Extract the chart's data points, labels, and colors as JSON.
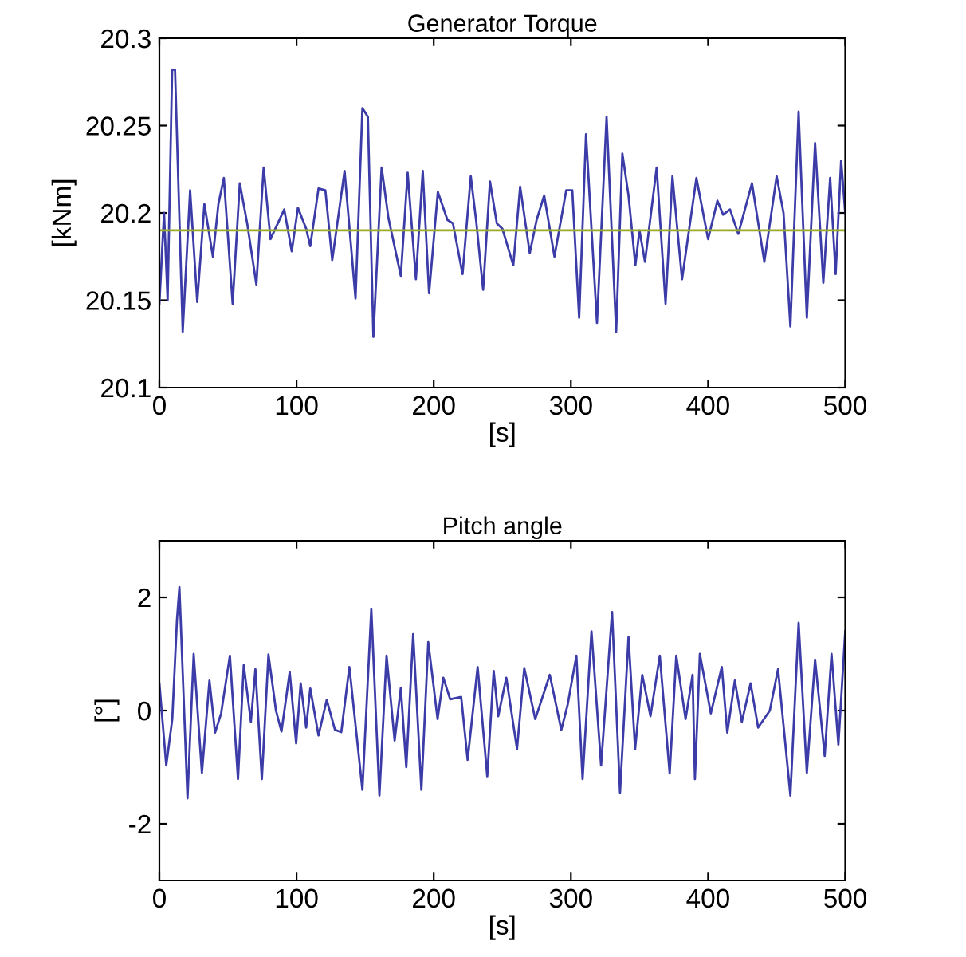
{
  "chart_data": [
    {
      "type": "line",
      "title": "Generator Torque",
      "xlabel": "[s]",
      "ylabel": "[kNm]",
      "xlim": [
        0,
        500
      ],
      "xticks": [
        0,
        100,
        200,
        300,
        400,
        500
      ],
      "ylim": [
        20.1,
        20.3
      ],
      "yticks": [
        20.1,
        20.15,
        20.2,
        20.25,
        20.3
      ],
      "grid": false,
      "marker": "none",
      "line_style": "solid",
      "ref_lines": [
        {
          "axis": "y",
          "value": 20.19,
          "color": "#9aaa2a"
        }
      ],
      "series": [
        {
          "color": "#3c3ca8",
          "x": [
            0,
            3.4,
            6,
            9.3,
            11.4,
            17,
            22.4,
            27.6,
            32.8,
            39,
            43,
            47,
            53.4,
            58.6,
            64,
            70.7,
            76,
            81,
            91,
            96.5,
            101,
            107,
            110,
            116,
            121,
            126,
            135,
            143,
            148,
            152,
            156,
            162,
            167,
            176,
            181,
            187,
            192,
            196.6,
            203,
            210,
            214,
            221,
            227,
            231,
            236,
            241,
            246,
            250,
            258,
            263,
            270,
            275,
            280.5,
            288,
            296.6,
            301,
            306,
            311,
            319,
            326,
            333,
            337.5,
            342,
            347,
            350,
            354,
            362.5,
            369,
            374,
            381,
            391.5,
            400,
            406.8,
            411,
            416,
            422,
            432,
            441,
            450,
            455,
            460,
            466,
            472,
            478,
            484,
            489,
            493,
            497,
            500
          ],
          "values": [
            20.148,
            20.2,
            20.15,
            20.282,
            20.282,
            20.132,
            20.213,
            20.149,
            20.205,
            20.175,
            20.205,
            20.22,
            20.148,
            20.217,
            20.194,
            20.159,
            20.226,
            20.185,
            20.202,
            20.178,
            20.203,
            20.191,
            20.181,
            20.214,
            20.213,
            20.173,
            20.224,
            20.151,
            20.26,
            20.255,
            20.129,
            20.226,
            20.197,
            20.164,
            20.223,
            20.162,
            20.224,
            20.154,
            20.212,
            20.196,
            20.194,
            20.165,
            20.221,
            20.195,
            20.156,
            20.218,
            20.194,
            20.191,
            20.17,
            20.215,
            20.177,
            20.196,
            20.21,
            20.175,
            20.213,
            20.213,
            20.14,
            20.245,
            20.137,
            20.255,
            20.132,
            20.234,
            20.21,
            20.17,
            20.19,
            20.172,
            20.226,
            20.148,
            20.221,
            20.162,
            20.22,
            20.185,
            20.207,
            20.199,
            20.202,
            20.188,
            20.217,
            20.172,
            20.221,
            20.2,
            20.135,
            20.258,
            20.14,
            20.24,
            20.16,
            20.22,
            20.165,
            20.23,
            20.2
          ]
        }
      ]
    },
    {
      "type": "line",
      "title": "Pitch angle",
      "xlabel": "[s]",
      "ylabel": "[°]",
      "xlim": [
        0,
        500
      ],
      "xticks": [
        0,
        100,
        200,
        300,
        400,
        500
      ],
      "ylim": [
        -3,
        3
      ],
      "yticks": [
        -2,
        0,
        2
      ],
      "grid": false,
      "marker": "none",
      "line_style": "solid",
      "series": [
        {
          "color": "#3c3ca8",
          "x": [
            0,
            5,
            9.4,
            12.8,
            14.6,
            20.5,
            25,
            31,
            36.5,
            40.6,
            45,
            51.4,
            57.3,
            61.5,
            66.7,
            70,
            74.7,
            79.5,
            85,
            89,
            95,
            99.7,
            103,
            107,
            110,
            116,
            122,
            128,
            132.6,
            138.5,
            148,
            154.5,
            160.4,
            165.6,
            171.5,
            176,
            180,
            185,
            191,
            196,
            202.8,
            207,
            212,
            220,
            224.7,
            232,
            239,
            243.7,
            247,
            252.9,
            260.7,
            266,
            274,
            284.6,
            293,
            297.6,
            304,
            308.5,
            315,
            322,
            330,
            335.8,
            342,
            346.8,
            352,
            358,
            364.8,
            372,
            376.8,
            383.6,
            388.7,
            390.4,
            394,
            402,
            410,
            414,
            419.5,
            424.6,
            431,
            436.5,
            445,
            451,
            460,
            466,
            472,
            478,
            485,
            490,
            495,
            500
          ],
          "values": [
            0.48,
            -0.97,
            -0.15,
            1.6,
            2.18,
            -1.55,
            1.0,
            -1.1,
            0.53,
            -0.39,
            -0.05,
            0.97,
            -1.21,
            0.8,
            -0.2,
            0.73,
            -1.21,
            0.99,
            0,
            -0.37,
            0.68,
            -0.58,
            0.48,
            -0.3,
            0.39,
            -0.44,
            0.19,
            -0.34,
            -0.38,
            0.77,
            -1.4,
            1.79,
            -1.5,
            0.97,
            -0.53,
            0.4,
            -1.0,
            1.35,
            -1.4,
            1.21,
            -0.15,
            0.58,
            0.2,
            0.24,
            -0.87,
            0.77,
            -1.16,
            0.7,
            -0.1,
            0.58,
            -0.68,
            0.75,
            -0.15,
            0.63,
            -0.34,
            0.1,
            0.97,
            -1.21,
            1.4,
            -0.97,
            1.74,
            -1.45,
            1.3,
            -0.68,
            0.63,
            -0.1,
            0.97,
            -1.11,
            0.97,
            -0.15,
            0.63,
            -1.21,
            1.0,
            -0.05,
            0.77,
            -0.39,
            0.53,
            -0.2,
            0.48,
            -0.3,
            0,
            0.73,
            -1.5,
            1.55,
            -1.1,
            0.9,
            -0.8,
            1.0,
            -0.6,
            1.4
          ]
        }
      ]
    }
  ]
}
